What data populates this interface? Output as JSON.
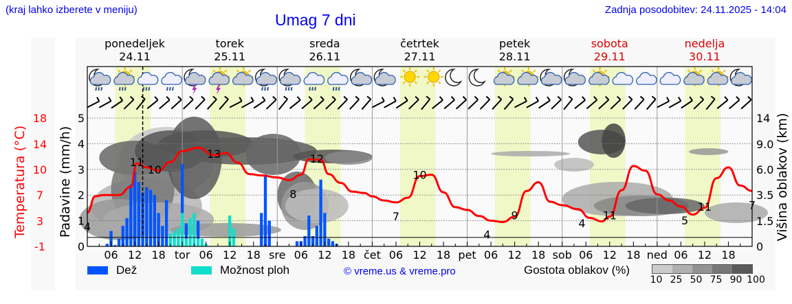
{
  "header": {
    "hint": "(kraj lahko izberete v meniju)",
    "title": "Umag 7 dni",
    "updated": "Zadnja posodobitev: 24.11.2025 - 14:04"
  },
  "days": [
    {
      "name": "ponedeljek",
      "date": "24.11",
      "weekend": false
    },
    {
      "name": "torek",
      "date": "25.11",
      "weekend": false
    },
    {
      "name": "sreda",
      "date": "26.11",
      "weekend": false
    },
    {
      "name": "četrtek",
      "date": "27.11",
      "weekend": false
    },
    {
      "name": "petek",
      "date": "28.11",
      "weekend": false
    },
    {
      "name": "sobota",
      "date": "29.11",
      "weekend": true
    },
    {
      "name": "nedelja",
      "date": "30.11",
      "weekend": true
    }
  ],
  "x_ticks": [
    "06",
    "12",
    "18",
    "tor",
    "06",
    "12",
    "18",
    "sre",
    "06",
    "12",
    "18",
    "čet",
    "06",
    "12",
    "18",
    "pet",
    "06",
    "12",
    "18",
    "sob",
    "06",
    "12",
    "18",
    "ned",
    "06",
    "12",
    "18"
  ],
  "axes": {
    "temp_label": "Temperatura (°C)",
    "temp_ticks": [
      "18",
      "14",
      "10",
      "7",
      "3",
      "-1"
    ],
    "precip_label": "Padavine (mm/h)",
    "precip_ticks": [
      "5",
      "4",
      "3",
      "2",
      "1",
      "0"
    ],
    "cloud_label": "Višina oblakov (km)",
    "cloud_ticks": [
      "14",
      "9.0",
      "6.0",
      "3.5",
      "1.5",
      "0"
    ]
  },
  "legend": {
    "rain_label": "Dež",
    "rain_color": "#0055ff",
    "shower_label": "Možnost ploh",
    "shower_color": "#11ddcc",
    "copyright": "© vreme.us & vreme.pro",
    "density_label": "Gostota oblakov (%)",
    "density_ticks": [
      "10",
      "25",
      "50",
      "75",
      "90",
      "100"
    ],
    "density_colors": [
      "#cccccc",
      "#b0b0b0",
      "#939393",
      "#777777",
      "#5a5a5a"
    ]
  },
  "colors": {
    "temperature_line": "#ff0000",
    "daylight_band": "#f0f8c8",
    "weekend_text": "#dd0000",
    "title_blue": "#0000ee"
  },
  "weather_icons": [
    "night-cloud-rain",
    "sun-cloud-rain",
    "cloud-rain",
    "cloud-rain",
    "night-cloud-thunder",
    "sun-cloud-thunder",
    "sun-cloud",
    "night-cloud-rain",
    "night-cloud-rain",
    "cloud-rain",
    "cloud-rain",
    "night-cloud",
    "night-cloud",
    "sun",
    "sun",
    "moon",
    "moon",
    "sun-cloud",
    "sun-cloud",
    "night-cloud",
    "night-cloud",
    "sun-cloud",
    "cloud",
    "cloud",
    "cloud",
    "sun-cloud",
    "sun-cloud",
    "night-cloud"
  ],
  "chart_data": {
    "type": "line",
    "title": "Umag 7 dni",
    "xlabel": "",
    "ylabel": "Temperatura (°C)",
    "ylim_temp": [
      -1,
      18
    ],
    "ylim_precip": [
      0,
      5
    ],
    "x_hours_from_start": [
      0,
      3,
      6,
      9,
      12,
      13,
      15,
      18,
      21,
      24,
      27,
      30,
      33,
      36,
      39,
      42,
      45,
      48,
      51,
      54,
      57,
      60,
      63,
      66,
      69,
      72,
      75,
      78,
      81,
      84,
      87,
      90,
      93,
      96,
      99,
      102,
      105,
      108,
      111,
      114,
      117,
      120,
      123,
      126,
      129,
      132,
      135,
      138,
      141,
      144,
      147,
      150,
      153,
      156,
      159,
      162,
      165,
      168
    ],
    "series": [
      {
        "name": "Temperatura (°C)",
        "type": "line",
        "hours": [
          0,
          2,
          4,
          8,
          11,
          12.5,
          15,
          18,
          21,
          24,
          28,
          32,
          35,
          38,
          41,
          44,
          48,
          51,
          54,
          56,
          59,
          61,
          64,
          67,
          70,
          72,
          75,
          78,
          81,
          84,
          87,
          90,
          93,
          96,
          99,
          102,
          105,
          108,
          111,
          114,
          117,
          120,
          124,
          127,
          130,
          132,
          135,
          138,
          141,
          144,
          147,
          150,
          153,
          156,
          159,
          162,
          165,
          168
        ],
        "values": [
          4,
          6.4,
          6.6,
          6.6,
          7.8,
          11.3,
          10.7,
          10.2,
          11.5,
          13.1,
          13.6,
          12.5,
          12.8,
          11.4,
          9.7,
          9.5,
          9.2,
          8.8,
          9.6,
          11.9,
          11.8,
          9.7,
          8.4,
          7.1,
          6.9,
          6.4,
          5.8,
          5.5,
          6.2,
          9.4,
          9.6,
          7,
          4.8,
          4.4,
          3.5,
          2.8,
          2.6,
          3.4,
          7.2,
          8.5,
          5.6,
          5.1,
          4.5,
          3.2,
          2.7,
          3.4,
          7.3,
          10.9,
          10.2,
          6.7,
          5.8,
          4.9,
          3.7,
          4.7,
          9.1,
          10.7,
          8.0,
          7.2
        ]
      },
      {
        "name": "Dež (mm/h)",
        "type": "bar",
        "hours": [
          5,
          6,
          7,
          8,
          9,
          10,
          11,
          12,
          13,
          14,
          15,
          16,
          17,
          18,
          19,
          20,
          24,
          25,
          28,
          44,
          45,
          46,
          53,
          54,
          55,
          56,
          57,
          58,
          59,
          60,
          61,
          62,
          63
        ],
        "values": [
          0.1,
          0.6,
          0.05,
          0.3,
          0.8,
          1.1,
          2.4,
          2.9,
          2.5,
          2.1,
          2.3,
          2.2,
          2.0,
          1.3,
          0.8,
          1.8,
          3.2,
          0.9,
          1.0,
          1.3,
          2.8,
          1.0,
          0.2,
          0.2,
          0.4,
          1.2,
          0.4,
          0.8,
          2.6,
          1.3,
          0.3,
          0.2,
          0.1
        ]
      },
      {
        "name": "Možnost ploh (mm/h)",
        "type": "bar",
        "hours": [
          21,
          22,
          23,
          24,
          25,
          26,
          27,
          28,
          29,
          30,
          36,
          37
        ],
        "values": [
          0.5,
          0.6,
          0.7,
          1.3,
          0.3,
          1.1,
          1.3,
          0.3,
          0.3,
          0.1,
          1.2,
          0.7
        ]
      }
    ],
    "temperature_annotations": [
      {
        "hour": 0,
        "label": "4"
      },
      {
        "hour": 12.5,
        "label": "11"
      },
      {
        "hour": 17,
        "label": "10"
      },
      {
        "hour": 32,
        "label": "13"
      },
      {
        "hour": 52,
        "label": "8"
      },
      {
        "hour": 58,
        "label": "12"
      },
      {
        "hour": 78,
        "label": "7"
      },
      {
        "hour": 84,
        "label": "10"
      },
      {
        "hour": 101,
        "label": "4"
      },
      {
        "hour": 108,
        "label": "9"
      },
      {
        "hour": 125,
        "label": "4"
      },
      {
        "hour": 132,
        "label": "11"
      },
      {
        "hour": 151,
        "label": "5"
      },
      {
        "hour": 156,
        "label": "11"
      },
      {
        "hour": 168,
        "label": "7"
      }
    ],
    "now_marker_hour": 14,
    "daylight_hours": [
      7,
      16
    ],
    "grid": true
  }
}
